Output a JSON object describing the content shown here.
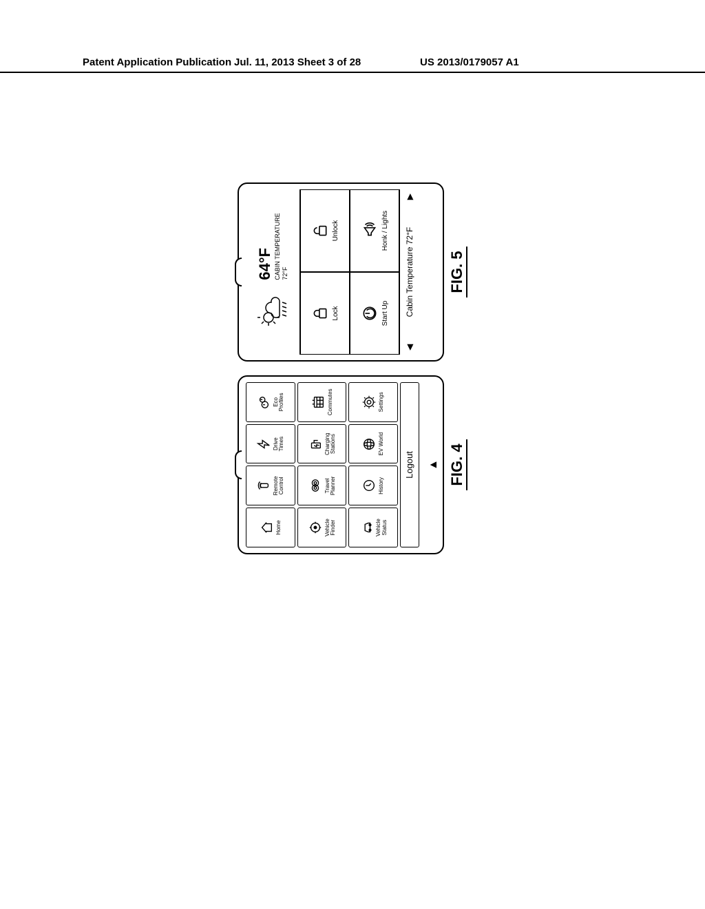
{
  "header": {
    "left": "Patent Application Publication",
    "center": "Jul. 11, 2013  Sheet 3 of 28",
    "right": "US 2013/0179057 A1"
  },
  "fig4": {
    "label": "FIG. 4",
    "tiles": [
      {
        "name": "home",
        "label": "Home"
      },
      {
        "name": "remote-control",
        "label": "Remote\nControl"
      },
      {
        "name": "drive-times",
        "label": "Drive\nTimes"
      },
      {
        "name": "eco-profiles",
        "label": "Eco\nProfiles"
      },
      {
        "name": "vehicle-finder",
        "label": "Vehicle\nFinder"
      },
      {
        "name": "travel-planner",
        "label": "Travel\nPlanner"
      },
      {
        "name": "charging-stations",
        "label": "Charging\nStations"
      },
      {
        "name": "commutes",
        "label": "Commutes"
      },
      {
        "name": "vehicle-status",
        "label": "Vehicle\nStatus"
      },
      {
        "name": "history",
        "label": "History"
      },
      {
        "name": "ev-world",
        "label": "EV World"
      },
      {
        "name": "settings",
        "label": "Settings"
      }
    ],
    "logout": "Logout",
    "home_indicator": "▲"
  },
  "fig5": {
    "label": "FIG. 5",
    "temp": "64°F",
    "cabin_label": "CABIN TEMPERATURE",
    "cabin_temp_top": "72°F",
    "tiles": [
      {
        "name": "lock",
        "label": "Lock"
      },
      {
        "name": "unlock",
        "label": "Unlock"
      },
      {
        "name": "start-up",
        "label": "Start Up"
      },
      {
        "name": "honk-lights",
        "label": "Honk / Lights"
      }
    ],
    "bottom": "Cabin Temperature 72°F",
    "arrow_left": "◀",
    "arrow_right": "▶"
  },
  "icons": {
    "stroke": "#000000",
    "stroke_width": 1.5
  }
}
